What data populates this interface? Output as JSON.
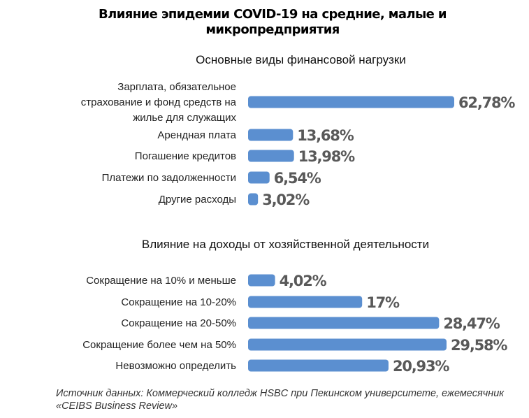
{
  "title": "Влияние эпидемии COVID-19 на средние, малые и микропредприятия",
  "source": "Источник данных: Коммерческий колледж HSBC при Пекинском университете, ежемесячник «CEIBS Business Review»",
  "colors": {
    "bar": "#5b8fd0",
    "value_text": "#595959"
  },
  "chart_data": [
    {
      "type": "bar",
      "orientation": "horizontal",
      "title": "Основные виды финансовой нагрузки",
      "unit": "%",
      "categories": [
        "Зарплата, обязательное страхование и фонд средств на жилье для служащих",
        "Арендная плата",
        "Погашение кредитов",
        "Платежи по задолженности",
        "Другие расходы"
      ],
      "values": [
        62.78,
        13.68,
        13.98,
        6.54,
        3.02
      ],
      "value_labels": [
        "62,78%",
        "13,68%",
        "13,98%",
        "6,54%",
        "3,02%"
      ],
      "xlim": [
        0,
        65
      ]
    },
    {
      "type": "bar",
      "orientation": "horizontal",
      "title": "Влияние на доходы от хозяйственной деятельности",
      "unit": "%",
      "categories": [
        "Сокращение на 10% и меньше",
        "Сокращение на 10-20%",
        "Сокращение на 20-50%",
        "Сокращение более чем на 50%",
        "Невозможно определить"
      ],
      "values": [
        4.02,
        17,
        28.47,
        29.58,
        20.93
      ],
      "value_labels": [
        "4,02%",
        "17%",
        "28,47%",
        "29,58%",
        "20,93%"
      ],
      "xlim": [
        0,
        31
      ]
    }
  ]
}
